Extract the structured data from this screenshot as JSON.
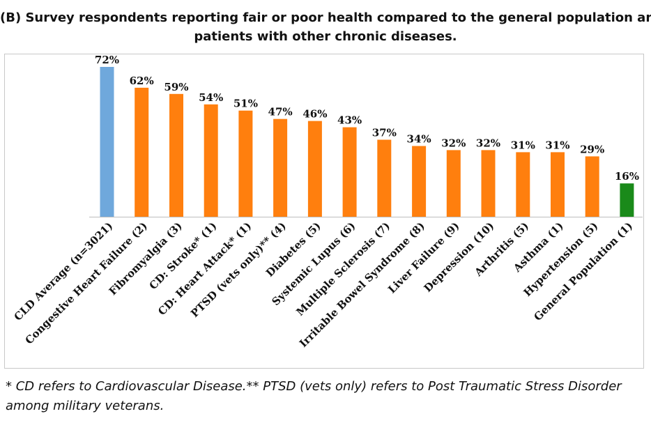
{
  "chart_data": {
    "type": "bar",
    "title_line1": "(B) Survey respondents reporting fair or poor health compared to the general population and",
    "title_line2": "patients with other chronic diseases.",
    "categories": [
      "CLD Average (n=3021)",
      "Congestive Heart Failure (2)",
      "Fibromyalgia (3)",
      "CD: Stroke* (1)",
      "CD: Heart Attack* (1)",
      "PTSD (vets only)** (4)",
      "Diabetes (5)",
      "Systemic Lupus (6)",
      "Multiple Sclerosis (7)",
      "Irritable Bowel Syndrome (8)",
      "Liver Failure (9)",
      "Depression (10)",
      "Arthritis (5)",
      "Asthma (1)",
      "Hypertension (5)",
      "General Population (1)"
    ],
    "values": [
      72,
      62,
      59,
      54,
      51,
      47,
      46,
      43,
      37,
      34,
      32,
      32,
      31,
      31,
      29,
      16
    ],
    "value_labels": [
      "72%",
      "62%",
      "59%",
      "54%",
      "51%",
      "47%",
      "46%",
      "43%",
      "37%",
      "34%",
      "32%",
      "32%",
      "31%",
      "31%",
      "29%",
      "16%"
    ],
    "bar_colors": [
      "#6fa8dc",
      "#ff7f0e",
      "#ff7f0e",
      "#ff7f0e",
      "#ff7f0e",
      "#ff7f0e",
      "#ff7f0e",
      "#ff7f0e",
      "#ff7f0e",
      "#ff7f0e",
      "#ff7f0e",
      "#ff7f0e",
      "#ff7f0e",
      "#ff7f0e",
      "#ff7f0e",
      "#1a8a1a"
    ],
    "ylim": [
      0,
      72
    ],
    "grid": false,
    "legend": "none"
  },
  "footnote": {
    "line1": "* CD refers to Cardiovascular Disease.** PTSD (vets only) refers to Post Traumatic Stress Disorder",
    "line2": "among military veterans."
  }
}
